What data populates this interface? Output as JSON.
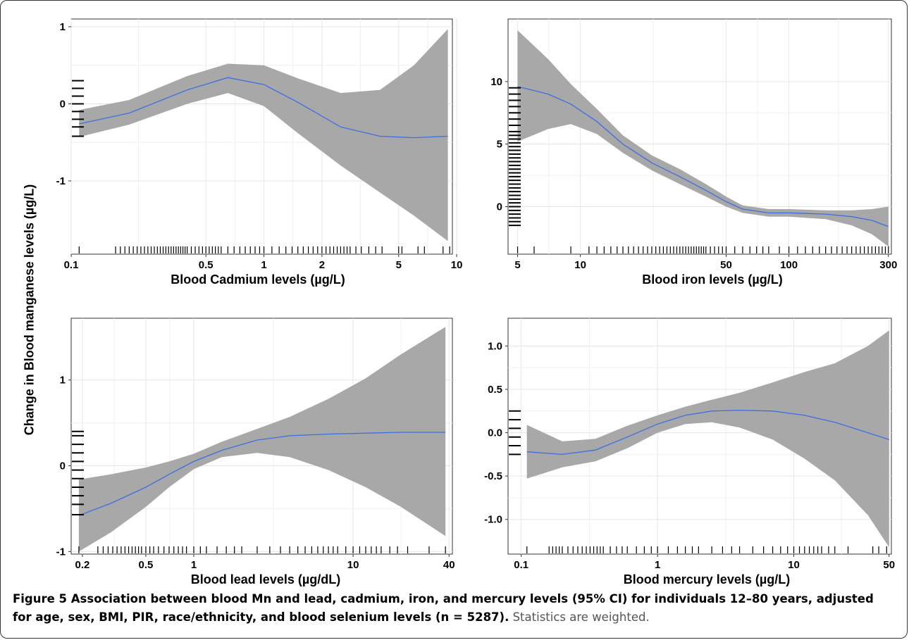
{
  "y_axis_label": "Change in Blood manganese levels (µg/L)",
  "caption": {
    "bold": "Figure 5 Association between blood Mn and lead, cadmium, iron, and mercury levels (95% CI) for individuals 12–80 years, adjusted for age, sex, BMI, PIR, race/ethnicity, and blood selenium levels (n = 5287).",
    "normal": " Statistics are weighted."
  },
  "colors": {
    "ribbon": "#a8a8a8",
    "line": "#3d6fe0",
    "grid": "#e6e6e6",
    "rug": "#000000"
  },
  "chart_data": [
    {
      "type": "line",
      "id": "cadmium",
      "xlabel": "Blood Cadmium levels (µg/L)",
      "x_scale": "log",
      "xlim": [
        0.1,
        9.5
      ],
      "ylim": [
        -1.95,
        1.1
      ],
      "xticks": [
        0.1,
        0.5,
        1,
        2,
        5,
        10
      ],
      "xtick_labels": [
        "0.1",
        "0.5",
        "1",
        "2",
        "5",
        "10"
      ],
      "yticks": [
        1,
        0,
        -1
      ],
      "ytick_labels": [
        "1",
        "0",
        "-1"
      ],
      "x": [
        0.11,
        0.2,
        0.4,
        0.65,
        1.0,
        1.5,
        2.5,
        4.0,
        6.0,
        9.0
      ],
      "fit": [
        -0.26,
        -0.12,
        0.18,
        0.34,
        0.25,
        0.02,
        -0.3,
        -0.42,
        -0.44,
        -0.42
      ],
      "lower": [
        -0.43,
        -0.27,
        0.0,
        0.14,
        -0.03,
        -0.38,
        -0.8,
        -1.15,
        -1.45,
        -1.78
      ],
      "upper": [
        -0.08,
        0.05,
        0.36,
        0.52,
        0.5,
        0.33,
        0.14,
        0.18,
        0.5,
        0.97
      ],
      "rug_x": [
        0.11,
        0.17,
        0.18,
        0.19,
        0.2,
        0.21,
        0.22,
        0.23,
        0.24,
        0.25,
        0.26,
        0.27,
        0.28,
        0.29,
        0.3,
        0.31,
        0.32,
        0.33,
        0.34,
        0.35,
        0.36,
        0.37,
        0.38,
        0.39,
        0.4,
        0.42,
        0.44,
        0.46,
        0.48,
        0.5,
        0.52,
        0.54,
        0.56,
        0.58,
        0.6,
        0.65,
        0.7,
        0.75,
        0.8,
        0.85,
        0.9,
        0.95,
        1.0,
        1.1,
        1.2,
        1.3,
        1.4,
        1.5,
        1.6,
        1.7,
        1.8,
        1.9,
        2.0,
        2.1,
        2.2,
        2.3,
        2.4,
        2.5,
        2.6,
        2.7,
        2.8,
        3.0,
        3.2,
        3.5,
        3.8,
        4.1,
        5.0,
        5.2,
        6.3,
        6.8,
        8.5,
        9.2
      ],
      "rug_y": [
        -0.42,
        -0.3,
        -0.2,
        -0.1,
        0.0,
        0.1,
        0.2,
        0.3
      ]
    },
    {
      "type": "line",
      "id": "iron",
      "xlabel": "Blood iron levels (µg/L)",
      "x_scale": "log",
      "xlim": [
        4.5,
        310
      ],
      "ylim": [
        -3.8,
        15
      ],
      "xticks": [
        5,
        10,
        50,
        100,
        300
      ],
      "xtick_labels": [
        "5",
        "10",
        "50",
        "100",
        "300"
      ],
      "yticks": [
        10,
        5,
        0
      ],
      "ytick_labels": [
        "10",
        "5",
        "0"
      ],
      "x": [
        5,
        7,
        9,
        12,
        16,
        22,
        30,
        40,
        50,
        60,
        80,
        100,
        150,
        200,
        250,
        300
      ],
      "fit": [
        9.6,
        9.0,
        8.2,
        6.8,
        5.0,
        3.5,
        2.4,
        1.3,
        0.4,
        -0.2,
        -0.5,
        -0.5,
        -0.6,
        -0.8,
        -1.1,
        -1.6
      ],
      "lower": [
        5.2,
        6.2,
        6.6,
        5.8,
        4.3,
        2.9,
        1.8,
        0.8,
        0.0,
        -0.5,
        -0.8,
        -0.8,
        -1.0,
        -1.5,
        -2.2,
        -3.2
      ],
      "upper": [
        14.1,
        11.8,
        9.8,
        7.8,
        5.7,
        4.1,
        3.0,
        1.8,
        0.8,
        0.1,
        -0.2,
        -0.2,
        -0.3,
        -0.3,
        -0.2,
        0.0
      ],
      "rug_x": [
        5,
        6,
        9,
        11,
        12,
        13,
        14,
        15,
        16,
        17,
        18,
        19,
        20,
        21,
        22,
        23,
        24,
        25,
        26,
        27,
        28,
        29,
        30,
        31,
        32,
        33,
        34,
        35,
        36,
        37,
        38,
        39,
        40,
        42,
        44,
        46,
        48,
        50,
        55,
        60,
        65,
        70,
        75,
        80,
        90,
        100,
        110,
        120,
        130,
        140,
        150,
        160,
        170,
        180,
        190,
        200,
        210,
        220,
        230,
        240,
        250,
        260,
        270,
        280,
        290,
        300
      ],
      "rug_y": [
        -1.5,
        -1.2,
        -0.9,
        -0.6,
        -0.3,
        0.0,
        0.3,
        0.6,
        0.9,
        1.2,
        1.5,
        1.8,
        2.1,
        2.4,
        2.7,
        3.0,
        3.3,
        3.6,
        3.9,
        4.2,
        4.5,
        4.8,
        5.1,
        5.4,
        5.7,
        6.0,
        6.5,
        7.0,
        7.5,
        8.0,
        8.5,
        9.0,
        9.5
      ]
    },
    {
      "type": "line",
      "id": "lead",
      "xlabel": "Blood lead levels (µg/dL)",
      "x_scale": "log",
      "xlim": [
        0.17,
        42
      ],
      "ylim": [
        -1.03,
        1.72
      ],
      "xticks": [
        0.2,
        0.5,
        1,
        10,
        40
      ],
      "xtick_labels": [
        "0.2",
        "0.5",
        "1",
        "10",
        "40"
      ],
      "yticks": [
        1,
        0,
        -1
      ],
      "ytick_labels": [
        "1",
        "0",
        "-1"
      ],
      "x": [
        0.19,
        0.3,
        0.5,
        0.7,
        1.0,
        1.5,
        2.5,
        4.0,
        7.0,
        12.0,
        20.0,
        38.0
      ],
      "fit": [
        -0.58,
        -0.44,
        -0.25,
        -0.1,
        0.05,
        0.18,
        0.3,
        0.35,
        0.37,
        0.38,
        0.39,
        0.39
      ],
      "lower": [
        -1.0,
        -0.78,
        -0.48,
        -0.25,
        -0.04,
        0.1,
        0.15,
        0.1,
        -0.05,
        -0.25,
        -0.48,
        -0.82
      ],
      "upper": [
        -0.16,
        -0.1,
        -0.02,
        0.05,
        0.14,
        0.28,
        0.43,
        0.57,
        0.78,
        1.02,
        1.3,
        1.62
      ],
      "rug_x": [
        0.19,
        0.25,
        0.27,
        0.29,
        0.31,
        0.33,
        0.35,
        0.37,
        0.39,
        0.41,
        0.43,
        0.45,
        0.47,
        0.5,
        0.53,
        0.56,
        0.6,
        0.65,
        0.7,
        0.75,
        0.8,
        0.85,
        0.9,
        1.0,
        1.1,
        1.2,
        1.4,
        1.6,
        1.8,
        2.0,
        2.5,
        3.0,
        3.5,
        4.0,
        4.5,
        5.0,
        5.5,
        6.0,
        6.5,
        7.0,
        7.5,
        8.0,
        9.0,
        10.0,
        11.0,
        12.0,
        13.0,
        14.0,
        15.0,
        17.0,
        19.0,
        22.0,
        30.0,
        38.0
      ],
      "rug_y": [
        -0.57,
        -0.45,
        -0.35,
        -0.25,
        -0.15,
        -0.05,
        0.05,
        0.15,
        0.25,
        0.35,
        0.4
      ]
    },
    {
      "type": "line",
      "id": "mercury",
      "xlabel": "Blood mercury levels (µg/L)",
      "x_scale": "log",
      "xlim": [
        0.08,
        52
      ],
      "ylim": [
        -1.4,
        1.32
      ],
      "xticks": [
        0.1,
        1,
        10,
        50
      ],
      "xtick_labels": [
        "0.1",
        "1",
        "10",
        "50"
      ],
      "yticks": [
        1.0,
        0.5,
        0.0,
        -0.5,
        -1.0
      ],
      "ytick_labels": [
        "1.0",
        "0.5",
        "0.0",
        "-0.5",
        "-1.0"
      ],
      "x": [
        0.11,
        0.2,
        0.35,
        0.6,
        1.0,
        1.6,
        2.5,
        4.0,
        7.0,
        12.0,
        20.0,
        35.0,
        50.0
      ],
      "fit": [
        -0.22,
        -0.25,
        -0.2,
        -0.05,
        0.1,
        0.2,
        0.25,
        0.26,
        0.25,
        0.2,
        0.12,
        0.0,
        -0.08
      ],
      "lower": [
        -0.53,
        -0.4,
        -0.33,
        -0.18,
        0.0,
        0.1,
        0.12,
        0.06,
        -0.08,
        -0.3,
        -0.55,
        -0.95,
        -1.32
      ],
      "upper": [
        0.09,
        -0.1,
        -0.07,
        0.08,
        0.2,
        0.3,
        0.38,
        0.46,
        0.58,
        0.7,
        0.8,
        1.0,
        1.18
      ],
      "rug_x": [
        0.11,
        0.16,
        0.17,
        0.18,
        0.19,
        0.2,
        0.22,
        0.24,
        0.26,
        0.28,
        0.3,
        0.32,
        0.34,
        0.36,
        0.38,
        0.4,
        0.45,
        0.5,
        0.55,
        0.6,
        0.7,
        0.8,
        0.9,
        1.0,
        1.2,
        1.4,
        1.6,
        1.8,
        2.0,
        2.5,
        3.0,
        3.5,
        4.0,
        5.0,
        6.0,
        7.0,
        8.0,
        9.0,
        10.0,
        11.0,
        12.0,
        13.0,
        14.0,
        15.0,
        16.0,
        18.0,
        20.0,
        25.0,
        38.0,
        42.0,
        48.0
      ],
      "rug_y": [
        -0.25,
        -0.15,
        -0.05,
        0.05,
        0.15,
        0.25
      ]
    }
  ]
}
